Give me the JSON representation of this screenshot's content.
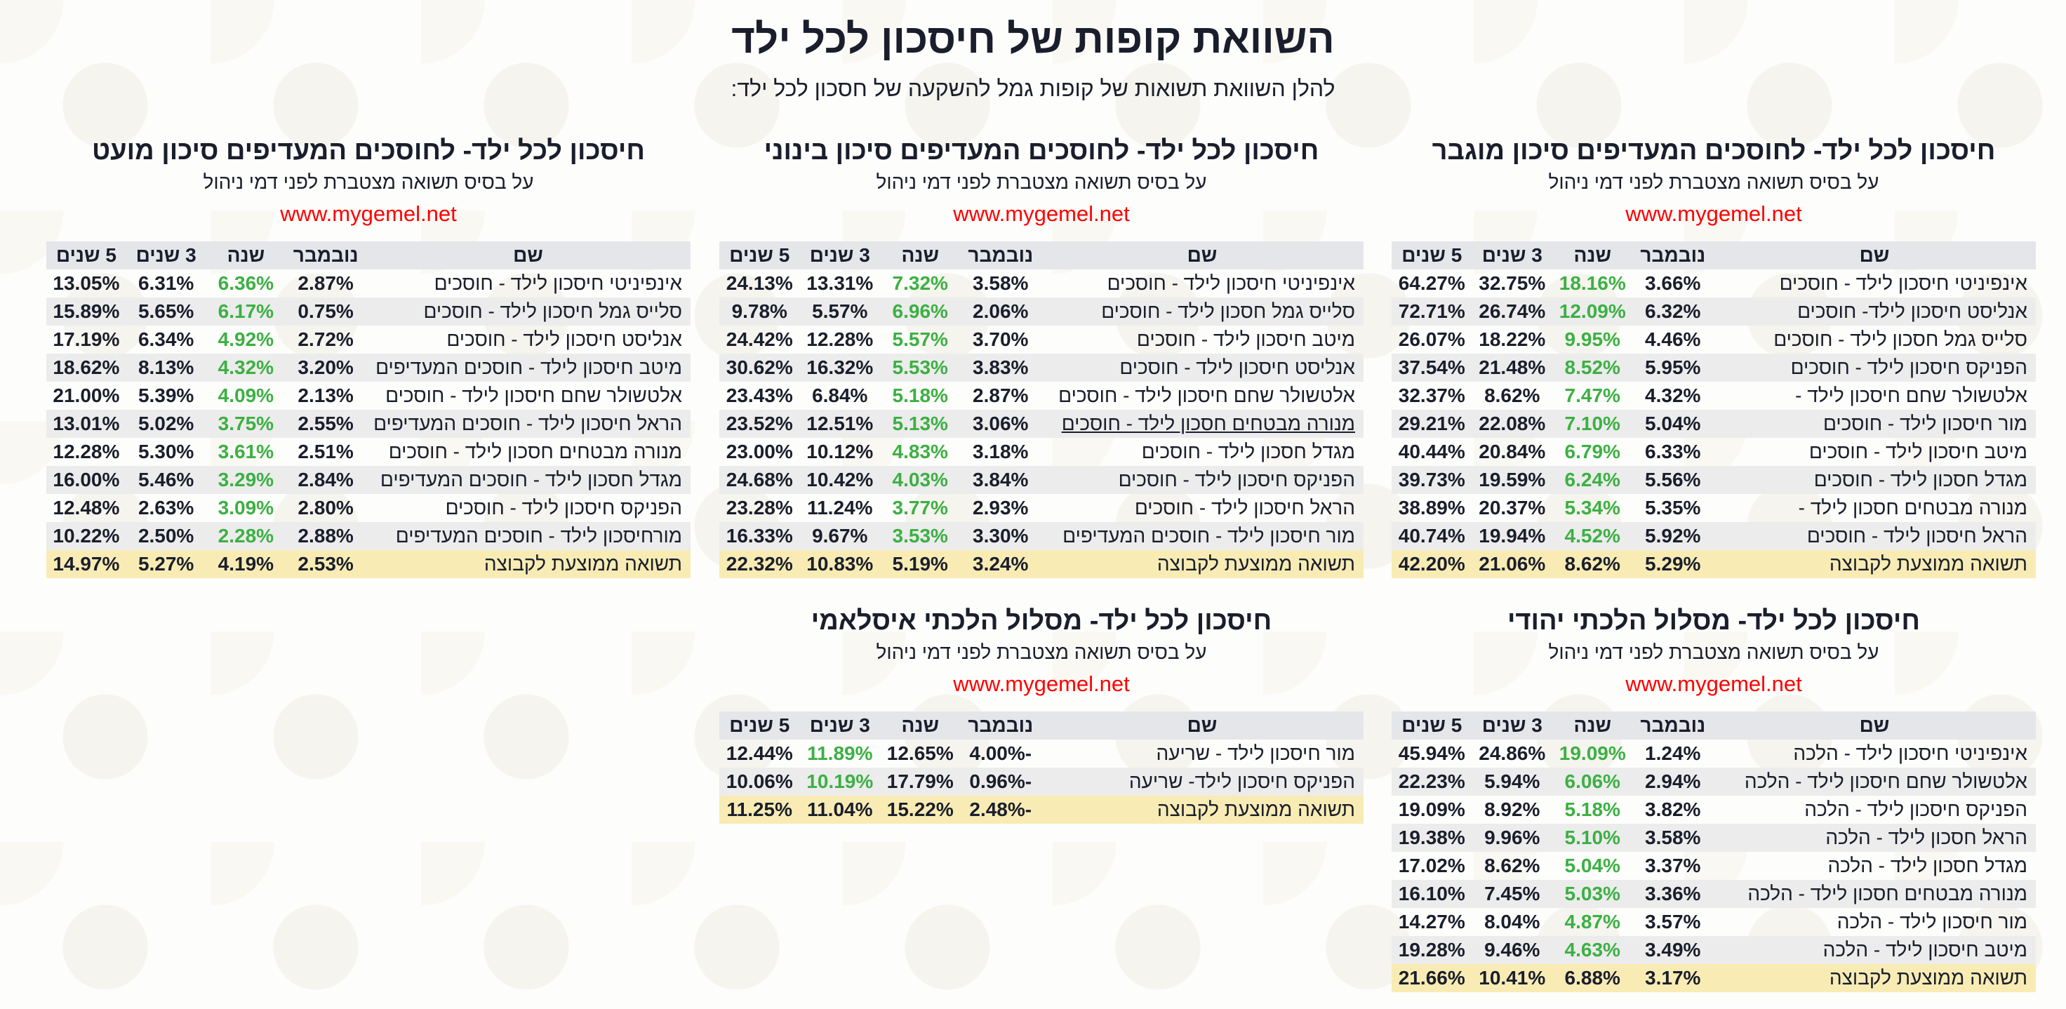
{
  "header": {
    "title": "השוואת קופות של חיסכון לכל ילד",
    "subtitle": "להלן השוואת תשואות של קופות גמל להשקעה של חסכון לכל ילד:"
  },
  "colors": {
    "green": "#3cb043",
    "url": "#ff0000",
    "avg_row": "#f8ecb4",
    "header_row": "#e5e6ea"
  },
  "sections": [
    {
      "title": "חיסכון לכל ילד- לחוסכים המעדיפים סיכון מוגבר",
      "subtitle": "על בסיס תשואה מצטברת לפני דמי ניהול",
      "url": "www.mygemel.net",
      "headers": [
        "שם",
        "נובמבר",
        "שנה",
        "3 שנים",
        "5 שנים"
      ],
      "highlight_col": 2,
      "rows": [
        [
          "אינפיניטי חיסכון לילד - חוסכים",
          "3.66%",
          "18.16%",
          "32.75%",
          "64.27%"
        ],
        [
          "אנליסט חיסכון לילד- חוסכים",
          "6.32%",
          "12.09%",
          "26.74%",
          "72.71%"
        ],
        [
          "סלייס גמל חסכון לילד - חוסכים",
          "4.46%",
          "9.95%",
          "18.22%",
          "26.07%"
        ],
        [
          "הפניקס חיסכון לילד - חוסכים",
          "5.95%",
          "8.52%",
          "21.48%",
          "37.54%"
        ],
        [
          "אלטשולר שחם חיסכון לילד -",
          "4.32%",
          "7.47%",
          "8.62%",
          "32.37%"
        ],
        [
          "מור חיסכון לילד - חוסכים",
          "5.04%",
          "7.10%",
          "22.08%",
          "29.21%"
        ],
        [
          "מיטב חיסכון לילד - חוסכים",
          "6.33%",
          "6.79%",
          "20.84%",
          "40.44%"
        ],
        [
          "מגדל חסכון לילד - חוסכים",
          "5.56%",
          "6.24%",
          "19.59%",
          "39.73%"
        ],
        [
          "מנורה מבטחים חסכון לילד -",
          "5.35%",
          "5.34%",
          "20.37%",
          "38.89%"
        ],
        [
          "הראל חיסכון לילד - חוסכים",
          "5.92%",
          "4.52%",
          "19.94%",
          "40.74%"
        ]
      ],
      "avg": [
        "תשואה ממוצעת לקבוצה",
        "5.29%",
        "8.62%",
        "21.06%",
        "42.20%"
      ]
    },
    {
      "title": "חיסכון לכל ילד- לחוסכים המעדיפים סיכון בינוני",
      "subtitle": "על בסיס תשואה מצטברת לפני דמי ניהול",
      "url": "www.mygemel.net",
      "headers": [
        "שם",
        "נובמבר",
        "שנה",
        "3 שנים",
        "5 שנים"
      ],
      "highlight_col": 2,
      "underlined_row": 5,
      "rows": [
        [
          "אינפיניטי חיסכון לילד - חוסכים",
          "3.58%",
          "7.32%",
          "13.31%",
          "24.13%"
        ],
        [
          "סלייס גמל חסכון לילד - חוסכים",
          "2.06%",
          "6.96%",
          "5.57%",
          "9.78%"
        ],
        [
          "מיטב חיסכון לילד - חוסכים",
          "3.70%",
          "5.57%",
          "12.28%",
          "24.42%"
        ],
        [
          "אנליסט חיסכון לילד - חוסכים",
          "3.83%",
          "5.53%",
          "16.32%",
          "30.62%"
        ],
        [
          "אלטשולר שחם חיסכון לילד - חוסכים",
          "2.87%",
          "5.18%",
          "6.84%",
          "23.43%"
        ],
        [
          "מנורה מבטחים חסכון לילד - חוסכים",
          "3.06%",
          "5.13%",
          "12.51%",
          "23.52%"
        ],
        [
          "מגדל חסכון לילד - חוסכים",
          "3.18%",
          "4.83%",
          "10.12%",
          "23.00%"
        ],
        [
          "הפניקס חיסכון לילד - חוסכים",
          "3.84%",
          "4.03%",
          "10.42%",
          "24.68%"
        ],
        [
          "הראל חיסכון לילד - חוסכים",
          "2.93%",
          "3.77%",
          "11.24%",
          "23.28%"
        ],
        [
          "מור חיסכון לילד - חוסכים המעדיפים",
          "3.30%",
          "3.53%",
          "9.67%",
          "16.33%"
        ]
      ],
      "avg": [
        "תשואה ממוצעת לקבוצה",
        "3.24%",
        "5.19%",
        "10.83%",
        "22.32%"
      ]
    },
    {
      "title": "חיסכון לכל ילד- לחוסכים המעדיפים סיכון מועט",
      "subtitle": "על בסיס תשואה מצטברת לפני דמי ניהול",
      "url": "www.mygemel.net",
      "headers": [
        "שם",
        "נובמבר",
        "שנה",
        "3 שנים",
        "5 שנים"
      ],
      "highlight_col": 2,
      "rows": [
        [
          "אינפיניטי חיסכון לילד - חוסכים",
          "2.87%",
          "6.36%",
          "6.31%",
          "13.05%"
        ],
        [
          "סלייס גמל חיסכון לילד - חוסכים",
          "0.75%",
          "6.17%",
          "5.65%",
          "15.89%"
        ],
        [
          "אנליסט חיסכון לילד - חוסכים",
          "2.72%",
          "4.92%",
          "6.34%",
          "17.19%"
        ],
        [
          "מיטב חיסכון לילד - חוסכים המעדיפים",
          "3.20%",
          "4.32%",
          "8.13%",
          "18.62%"
        ],
        [
          "אלטשולר שחם חיסכון לילד - חוסכים",
          "2.13%",
          "4.09%",
          "5.39%",
          "21.00%"
        ],
        [
          "הראל חיסכון לילד - חוסכים המעדיפים",
          "2.55%",
          "3.75%",
          "5.02%",
          "13.01%"
        ],
        [
          "מנורה מבטחים חסכון לילד - חוסכים",
          "2.51%",
          "3.61%",
          "5.30%",
          "12.28%"
        ],
        [
          "מגדל חסכון לילד - חוסכים המעדיפים",
          "2.84%",
          "3.29%",
          "5.46%",
          "16.00%"
        ],
        [
          "הפניקס חיסכון לילד - חוסכים",
          "2.80%",
          "3.09%",
          "2.63%",
          "12.48%"
        ],
        [
          "מורחיסכון לילד - חוסכים המעדיפים",
          "2.88%",
          "2.28%",
          "2.50%",
          "10.22%"
        ]
      ],
      "avg": [
        "תשואה ממוצעת לקבוצה",
        "2.53%",
        "4.19%",
        "5.27%",
        "14.97%"
      ]
    },
    {
      "title": "חיסכון לכל ילד- מסלול הלכתי יהודי",
      "subtitle": "על בסיס תשואה מצטברת לפני דמי ניהול",
      "url": "www.mygemel.net",
      "headers": [
        "שם",
        "נובמבר",
        "שנה",
        "3 שנים",
        "5 שנים"
      ],
      "highlight_col": 2,
      "rows": [
        [
          "אינפיניטי חיסכון לילד - הלכה",
          "1.24%",
          "19.09%",
          "24.86%",
          "45.94%"
        ],
        [
          "אלטשולר שחם חיסכון לילד - הלכה",
          "2.94%",
          "6.06%",
          "5.94%",
          "22.23%"
        ],
        [
          "הפניקס חיסכון לילד - הלכה",
          "3.82%",
          "5.18%",
          "8.92%",
          "19.09%"
        ],
        [
          "הראל חסכון לילד - הלכה",
          "3.58%",
          "5.10%",
          "9.96%",
          "19.38%"
        ],
        [
          "מגדל חסכון לילד - הלכה",
          "3.37%",
          "5.04%",
          "8.62%",
          "17.02%"
        ],
        [
          "מנורה מבטחים חסכון לילד - הלכה",
          "3.36%",
          "5.03%",
          "7.45%",
          "16.10%"
        ],
        [
          "מור חיסכון לילד - הלכה",
          "3.57%",
          "4.87%",
          "8.04%",
          "14.27%"
        ],
        [
          "מיטב חיסכון לילד - הלכה",
          "3.49%",
          "4.63%",
          "9.46%",
          "19.28%"
        ]
      ],
      "avg": [
        "תשואה ממוצעת לקבוצה",
        "3.17%",
        "6.88%",
        "10.41%",
        "21.66%"
      ]
    },
    {
      "title": "חיסכון לכל ילד- מסלול הלכתי איסלאמי",
      "subtitle": "על בסיס תשואה מצטברת לפני דמי ניהול",
      "url": "www.mygemel.net",
      "headers": [
        "שם",
        "נובמבר",
        "שנה",
        "3 שנים",
        "5 שנים"
      ],
      "highlight_col": 3,
      "rows": [
        [
          "מור חיסכון לילד - שריעה",
          "-4.00%",
          "12.65%",
          "11.89%",
          "12.44%"
        ],
        [
          "הפניקס חיסכון לילד- שריעה",
          "-0.96%",
          "17.79%",
          "10.19%",
          "10.06%"
        ]
      ],
      "avg": [
        "תשואה ממוצעת לקבוצה",
        "-2.48%",
        "15.22%",
        "11.04%",
        "11.25%"
      ]
    }
  ]
}
